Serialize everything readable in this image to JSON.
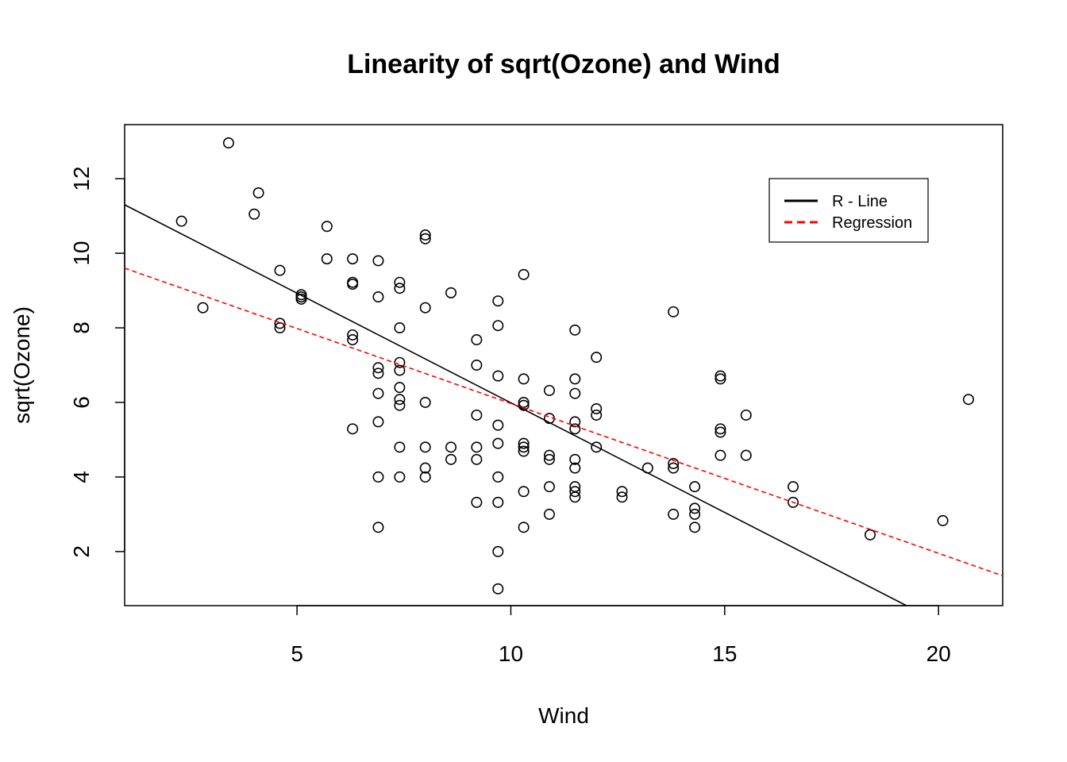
{
  "chart_data": {
    "type": "scatter",
    "title": "Linearity of sqrt(Ozone) and Wind",
    "xlabel": "Wind",
    "ylabel": "sqrt(Ozone)",
    "xlim": [
      0.97,
      21.5
    ],
    "ylim": [
      0.55,
      13.45
    ],
    "x_ticks": [
      5,
      10,
      15,
      20
    ],
    "y_ticks": [
      2,
      4,
      6,
      8,
      10,
      12
    ],
    "grid": false,
    "legend": {
      "position": "top-right",
      "entries": [
        {
          "label": "R - Line",
          "color": "#000000",
          "style": "solid"
        },
        {
          "label": "Regression",
          "color": "#ff0000",
          "style": "dashed"
        }
      ]
    },
    "series": [
      {
        "kind": "points",
        "color": "#000000",
        "points": [
          [
            2.3,
            10.86
          ],
          [
            2.8,
            8.54
          ],
          [
            3.4,
            12.96
          ],
          [
            4.0,
            11.05
          ],
          [
            4.1,
            11.62
          ],
          [
            4.6,
            9.54
          ],
          [
            4.6,
            8.12
          ],
          [
            4.6,
            8.0
          ],
          [
            5.1,
            8.89
          ],
          [
            5.1,
            8.83
          ],
          [
            5.1,
            8.77
          ],
          [
            5.7,
            10.72
          ],
          [
            5.7,
            9.85
          ],
          [
            6.3,
            9.85
          ],
          [
            6.3,
            9.22
          ],
          [
            6.3,
            9.17
          ],
          [
            6.3,
            7.81
          ],
          [
            6.3,
            7.68
          ],
          [
            6.3,
            5.29
          ],
          [
            6.9,
            9.8
          ],
          [
            6.9,
            8.83
          ],
          [
            6.9,
            6.93
          ],
          [
            6.9,
            6.78
          ],
          [
            6.9,
            6.24
          ],
          [
            6.9,
            5.48
          ],
          [
            6.9,
            4.0
          ],
          [
            6.9,
            2.65
          ],
          [
            7.4,
            9.22
          ],
          [
            7.4,
            9.06
          ],
          [
            7.4,
            8.0
          ],
          [
            7.4,
            7.07
          ],
          [
            7.4,
            6.86
          ],
          [
            7.4,
            6.4
          ],
          [
            7.4,
            6.08
          ],
          [
            7.4,
            5.92
          ],
          [
            7.4,
            4.8
          ],
          [
            7.4,
            4.0
          ],
          [
            8.0,
            10.49
          ],
          [
            8.0,
            10.39
          ],
          [
            8.0,
            8.54
          ],
          [
            8.0,
            6.0
          ],
          [
            8.0,
            4.8
          ],
          [
            8.0,
            4.24
          ],
          [
            8.0,
            4.0
          ],
          [
            8.6,
            8.94
          ],
          [
            8.6,
            4.8
          ],
          [
            8.6,
            4.47
          ],
          [
            9.2,
            7.68
          ],
          [
            9.2,
            7.0
          ],
          [
            9.2,
            5.66
          ],
          [
            9.2,
            4.8
          ],
          [
            9.2,
            4.47
          ],
          [
            9.2,
            3.32
          ],
          [
            9.7,
            8.72
          ],
          [
            9.7,
            8.06
          ],
          [
            9.7,
            6.71
          ],
          [
            9.7,
            5.39
          ],
          [
            9.7,
            4.9
          ],
          [
            9.7,
            4.0
          ],
          [
            9.7,
            3.32
          ],
          [
            9.7,
            2.0
          ],
          [
            9.7,
            1.0
          ],
          [
            10.3,
            9.43
          ],
          [
            10.3,
            6.63
          ],
          [
            10.3,
            6.0
          ],
          [
            10.3,
            5.92
          ],
          [
            10.3,
            4.9
          ],
          [
            10.3,
            4.8
          ],
          [
            10.3,
            4.69
          ],
          [
            10.3,
            3.61
          ],
          [
            10.3,
            2.65
          ],
          [
            10.9,
            6.32
          ],
          [
            10.9,
            5.57
          ],
          [
            10.9,
            4.58
          ],
          [
            10.9,
            4.47
          ],
          [
            10.9,
            3.74
          ],
          [
            10.9,
            3.0
          ],
          [
            11.5,
            7.94
          ],
          [
            11.5,
            6.63
          ],
          [
            11.5,
            6.24
          ],
          [
            11.5,
            5.48
          ],
          [
            11.5,
            5.29
          ],
          [
            11.5,
            4.47
          ],
          [
            11.5,
            4.24
          ],
          [
            11.5,
            3.74
          ],
          [
            11.5,
            3.61
          ],
          [
            11.5,
            3.46
          ],
          [
            12.0,
            7.21
          ],
          [
            12.0,
            5.83
          ],
          [
            12.0,
            5.66
          ],
          [
            12.0,
            4.8
          ],
          [
            12.6,
            3.61
          ],
          [
            12.6,
            3.46
          ],
          [
            13.2,
            4.24
          ],
          [
            13.8,
            8.43
          ],
          [
            13.8,
            4.36
          ],
          [
            13.8,
            4.24
          ],
          [
            13.8,
            3.0
          ],
          [
            14.3,
            3.74
          ],
          [
            14.3,
            3.16
          ],
          [
            14.3,
            3.0
          ],
          [
            14.3,
            2.65
          ],
          [
            14.9,
            6.71
          ],
          [
            14.9,
            6.63
          ],
          [
            14.9,
            5.29
          ],
          [
            14.9,
            5.2
          ],
          [
            14.9,
            4.58
          ],
          [
            15.5,
            5.66
          ],
          [
            15.5,
            4.58
          ],
          [
            16.6,
            3.74
          ],
          [
            16.6,
            3.32
          ],
          [
            18.4,
            2.45
          ],
          [
            20.1,
            2.83
          ],
          [
            20.7,
            6.08
          ]
        ]
      },
      {
        "kind": "line",
        "name": "R - Line",
        "color": "#000000",
        "style": "solid",
        "from": [
          0.97,
          11.3
        ],
        "to": [
          19.25,
          0.55
        ]
      },
      {
        "kind": "line",
        "name": "Regression",
        "color": "#ff0000",
        "style": "dashed",
        "from": [
          0.97,
          9.6
        ],
        "to": [
          21.5,
          1.35
        ]
      }
    ]
  }
}
